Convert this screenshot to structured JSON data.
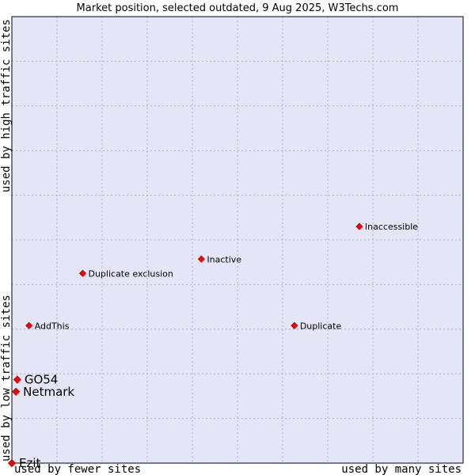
{
  "chart_data": {
    "type": "scatter",
    "title": "Market position, selected outdated, 9 Aug 2025, W3Techs.com",
    "xlabel_left": "used by fewer sites",
    "xlabel_right": "used by many sites",
    "ylabel_bottom": "used by low traffic sites",
    "ylabel_top": "used by high traffic sites",
    "xlim": [
      0,
      100
    ],
    "ylim": [
      0,
      100
    ],
    "grid": true,
    "colors": {
      "plot_bg": "#e4e6f8",
      "grid": "#b0b0c8",
      "marker": "#ff0000",
      "marker_edge": "#aa0000"
    },
    "points": [
      {
        "name": "Inaccessible",
        "x": 77.0,
        "y": 53.0,
        "size": "small"
      },
      {
        "name": "Inactive",
        "x": 42.0,
        "y": 45.7,
        "size": "small"
      },
      {
        "name": "Duplicate exclusion",
        "x": 15.7,
        "y": 42.5,
        "size": "small"
      },
      {
        "name": "AddThis",
        "x": 3.8,
        "y": 30.8,
        "size": "small"
      },
      {
        "name": "Duplicate",
        "x": 62.6,
        "y": 30.8,
        "size": "small"
      },
      {
        "name": "GO54",
        "x": 1.2,
        "y": 18.7,
        "size": "large"
      },
      {
        "name": "Netmark",
        "x": 0.9,
        "y": 16.0,
        "size": "large"
      },
      {
        "name": "Ezit",
        "x": 0.0,
        "y": 0.0,
        "size": "large"
      }
    ]
  }
}
